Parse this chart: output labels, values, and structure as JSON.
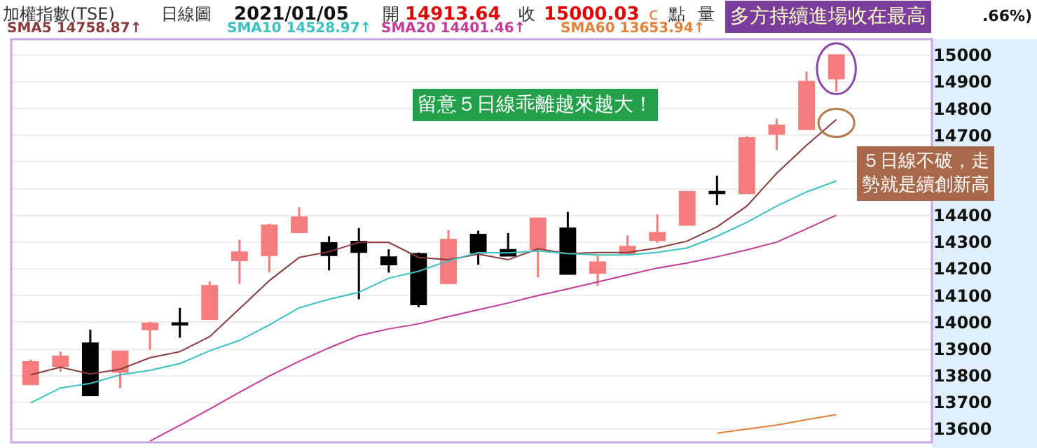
{
  "chart_data": {
    "type": "candlestick",
    "title": "加權指數(TSE)",
    "annotations": [
      "日線圖",
      "2021/01/05",
      "開",
      "14913.64",
      "收",
      "15000.03",
      "c",
      "點",
      "量",
      ".66%)",
      "多方持續進場收在最高",
      "留意５日線乖離越來越大！",
      "５日線不破，走勢就是續創新高"
    ],
    "categories": [
      null,
      null,
      null,
      null,
      null,
      null,
      null,
      null,
      null,
      null,
      null,
      null,
      null,
      null,
      null,
      null,
      null,
      null,
      null,
      null,
      null,
      null,
      null,
      null,
      null,
      null,
      null,
      null
    ],
    "ohlc": [
      [
        13768,
        13860,
        13768,
        13850
      ],
      [
        13837,
        13890,
        13815,
        13871
      ],
      [
        13920,
        13972,
        13727,
        13727
      ],
      [
        13815,
        13890,
        13753,
        13890
      ],
      [
        13974,
        14002,
        13897,
        13995
      ],
      [
        13996,
        14054,
        13942,
        13992
      ],
      [
        14013,
        14152,
        14013,
        14135
      ],
      [
        14233,
        14309,
        14144,
        14261
      ],
      [
        14252,
        14369,
        14187,
        14362
      ],
      [
        14338,
        14430,
        14338,
        14392
      ],
      [
        14296,
        14322,
        14194,
        14252
      ],
      [
        14301,
        14353,
        14086,
        14264
      ],
      [
        14243,
        14273,
        14186,
        14217
      ],
      [
        14255,
        14261,
        14056,
        14068
      ],
      [
        14147,
        14344,
        14147,
        14308
      ],
      [
        14327,
        14343,
        14215,
        14261
      ],
      [
        14270,
        14334,
        14250,
        14250
      ],
      [
        14275,
        14388,
        14168,
        14388
      ],
      [
        14351,
        14413,
        14182,
        14182
      ],
      [
        14186,
        14252,
        14136,
        14224
      ],
      [
        14259,
        14325,
        14259,
        14282
      ],
      [
        14308,
        14404,
        14297,
        14334
      ],
      [
        14365,
        14488,
        14365,
        14488
      ],
      [
        14488,
        14549,
        14439,
        14484
      ],
      [
        14484,
        14697,
        14484,
        14689
      ],
      [
        14706,
        14762,
        14645,
        14736
      ],
      [
        14724,
        14939,
        14724,
        14900
      ],
      [
        14913.64,
        15000.03,
        14864,
        15000.03
      ]
    ],
    "colors": [
      "#f47c7c",
      "#f47c7c",
      "#000000",
      "#f47c7c",
      "#f47c7c",
      "#000000",
      "#f47c7c",
      "#f47c7c",
      "#f47c7c",
      "#f47c7c",
      "#000000",
      "#000000",
      "#000000",
      "#000000",
      "#f47c7c",
      "#000000",
      "#000000",
      "#f47c7c",
      "#000000",
      "#f47c7c",
      "#f47c7c",
      "#f47c7c",
      "#f47c7c",
      "#000000",
      "#f47c7c",
      "#f47c7c",
      "#f47c7c",
      "#f47c7c"
    ],
    "series": [
      {
        "type": "line",
        "name": "SMA5 14758.87↑",
        "color": "#8a3a3a",
        "values": [
          13803,
          13832,
          13806,
          13824,
          13867,
          13890,
          13946,
          14051,
          14156,
          14243,
          14264,
          14299,
          14299,
          14243,
          14234,
          14255,
          14234,
          14275,
          14257,
          14261,
          14261,
          14278,
          14304,
          14357,
          14435,
          14558,
          14663,
          14759
        ]
      },
      {
        "type": "line",
        "name": "SMA10 14528.97↑",
        "color": "#3cc0c0",
        "values": [
          13698,
          13754,
          13771,
          13803,
          13820,
          13845,
          13893,
          13932,
          13990,
          14054,
          14086,
          14112,
          14165,
          14191,
          14230,
          14261,
          14260,
          14267,
          14257,
          14252,
          14252,
          14262,
          14278,
          14322,
          14374,
          14435,
          14488,
          14529
        ]
      },
      {
        "type": "line",
        "name": "SMA20 14401.46↑",
        "color": "#c03a96",
        "values": [
          null,
          null,
          null,
          null,
          13555,
          13614,
          13675,
          13738,
          13799,
          13854,
          13904,
          13950,
          13975,
          13994,
          14021,
          14047,
          14072,
          14100,
          14125,
          14151,
          14177,
          14203,
          14222,
          14245,
          14271,
          14300,
          14350,
          14401
        ]
      },
      {
        "type": "line",
        "name": "SMA60 13653.94↑",
        "color": "#e0803a",
        "values": [
          null,
          null,
          null,
          null,
          null,
          null,
          null,
          null,
          null,
          null,
          null,
          null,
          null,
          null,
          null,
          null,
          null,
          null,
          null,
          null,
          null,
          null,
          null,
          13585,
          13600,
          13615,
          13635,
          13654
        ]
      }
    ],
    "ylim": [
      13550,
      15060
    ],
    "yticks": [
      13600,
      13700,
      13800,
      13900,
      14000,
      14100,
      14200,
      14300,
      14400,
      {
        "value": 14500,
        "label": null
      },
      {
        "value": 14600,
        "label": null
      },
      14700,
      14800,
      14900,
      15000
    ],
    "grid": "y",
    "legend": "top",
    "tick_labels": "y",
    "marker": "none",
    "line_style": "solid"
  }
}
